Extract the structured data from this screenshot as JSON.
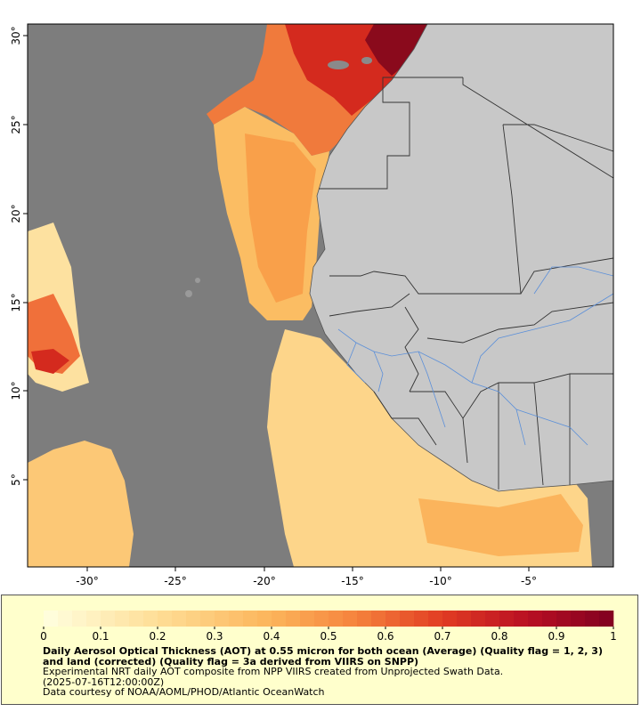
{
  "map": {
    "lon_ticks": [
      "-30°",
      "-25°",
      "-20°",
      "-15°",
      "-10°",
      "-5°"
    ],
    "lat_ticks": [
      "30°",
      "25°",
      "20°",
      "15°",
      "10°",
      "5°"
    ],
    "colors": {
      "no_data": "#7d7d7d",
      "land": "#c8c8c8",
      "border": "#333333",
      "river": "#5b8fd9"
    }
  },
  "legend": {
    "ticks": [
      "0",
      "0.1",
      "0.2",
      "0.3",
      "0.4",
      "0.5",
      "0.6",
      "0.7",
      "0.8",
      "0.9",
      "1"
    ],
    "min": 0,
    "max": 1,
    "title": "Daily Aerosol Optical Thickness (AOT) at 0.55 micron for both ocean (Average) (Quality flag = 1, 2, 3) and land (corrected) (Quality flag = 3a derived from VIIRS on SNPP)",
    "description": "Experimental NRT daily AOT composite from NPP VIIRS created from Unprojected Swath Data.",
    "timestamp": "(2025-07-16T12:00:00Z)",
    "credit": "Data courtesy of NOAA/AOML/PHOD/Atlantic OceanWatch"
  }
}
